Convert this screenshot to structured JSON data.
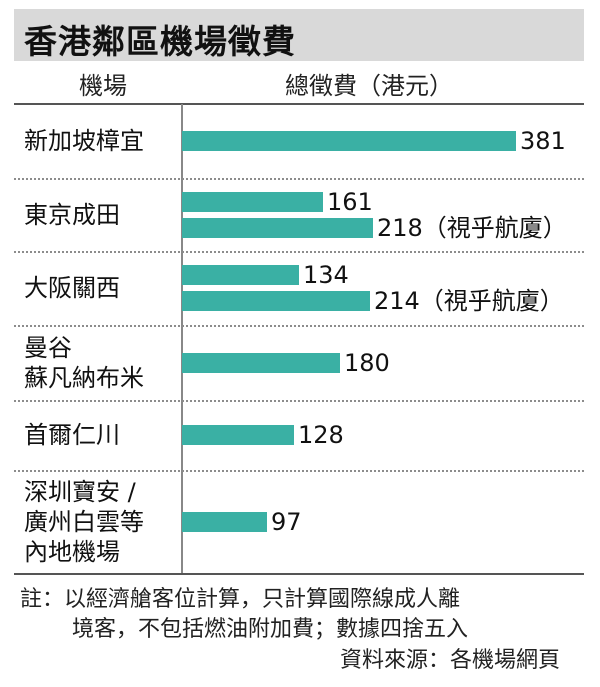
{
  "title": "香港鄰區機場徵費",
  "headers": {
    "airport": "機場",
    "fee": "總徵費（港元）"
  },
  "chart_data": {
    "type": "bar",
    "orientation": "horizontal",
    "title": "香港鄰區機場徵費",
    "xlabel": "總徵費（港元）",
    "ylabel": "機場",
    "groups": [
      {
        "label": [
          "新加坡樟宜"
        ],
        "bars": [
          {
            "value": 381,
            "label": "381"
          }
        ]
      },
      {
        "label": [
          "東京成田"
        ],
        "bars": [
          {
            "value": 161,
            "label": "161"
          },
          {
            "value": 218,
            "label": "218（視乎航廈）"
          }
        ]
      },
      {
        "label": [
          "大阪關西"
        ],
        "bars": [
          {
            "value": 134,
            "label": "134"
          },
          {
            "value": 214,
            "label": "214（視乎航廈）"
          }
        ]
      },
      {
        "label": [
          "曼谷",
          "蘇凡納布米"
        ],
        "bars": [
          {
            "value": 180,
            "label": "180"
          }
        ]
      },
      {
        "label": [
          "首爾仁川"
        ],
        "bars": [
          {
            "value": 128,
            "label": "128"
          }
        ]
      },
      {
        "label": [
          "深圳寶安 /",
          "廣州白雲等",
          "內地機場"
        ],
        "bars": [
          {
            "value": 97,
            "label": "97"
          }
        ]
      }
    ],
    "bar_color": "#3ab0a4",
    "grid": false,
    "legend": "none"
  },
  "footnote": {
    "lines": [
      "註：以經濟艙客位計算，只計算國際線成人離",
      "境客，不包括燃油附加費；數據四捨五入"
    ],
    "source": "資料來源：各機場網頁"
  }
}
